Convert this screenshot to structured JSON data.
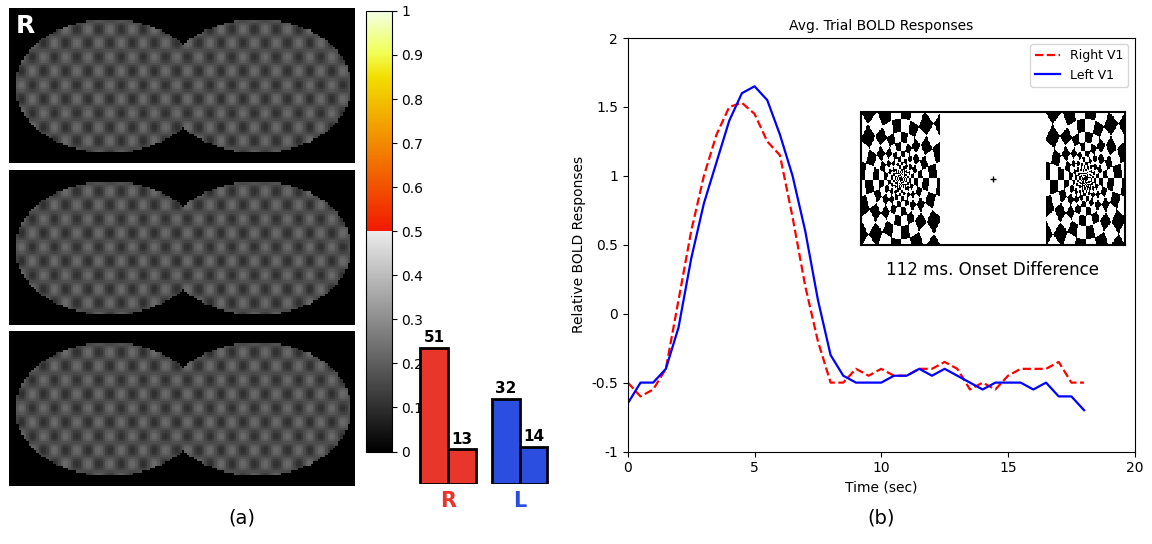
{
  "chart_data": [
    {
      "type": "image",
      "label": "(a)",
      "annotation": "R",
      "colorbar": {
        "range": [
          0,
          1
        ],
        "ticks": [
          0,
          0.1,
          0.2,
          0.3,
          0.4,
          0.5,
          0.6,
          0.7,
          0.8,
          0.9,
          1
        ]
      }
    },
    {
      "type": "bar",
      "tick_labels": false,
      "data_labels": true,
      "series": [
        {
          "name": "R",
          "color": "#e8362a",
          "values": [
            51,
            13
          ]
        },
        {
          "name": "L",
          "color": "#2b4ee0",
          "values": [
            32,
            14
          ]
        }
      ]
    },
    {
      "type": "line",
      "label": "(b)",
      "title": "Avg. Trial BOLD Responses",
      "x_label": "Time (sec)",
      "y_label": "Relative BOLD Responses",
      "annotation": "112 ms. Onset Difference",
      "xlim": [
        0,
        20
      ],
      "xticks": [
        0,
        5,
        10,
        15,
        20
      ],
      "ylim": [
        -1,
        2
      ],
      "yticks": [
        -1,
        -0.5,
        0,
        0.5,
        1,
        1.5,
        2
      ],
      "legend": "upper right",
      "x": [
        0,
        0.5,
        1,
        1.5,
        2,
        2.5,
        3,
        3.5,
        4,
        4.5,
        5,
        5.5,
        6,
        6.5,
        7,
        7.5,
        8,
        8.5,
        9,
        9.5,
        10,
        10.5,
        11,
        11.5,
        12,
        12.5,
        13,
        13.5,
        14,
        14.5,
        15,
        15.5,
        16,
        16.5,
        17,
        17.5,
        18
      ],
      "series": [
        {
          "name": "Right V1",
          "color": "#ff0000",
          "line_style": "dashed",
          "values": [
            -0.5,
            -0.6,
            -0.55,
            -0.4,
            0.1,
            0.6,
            1.0,
            1.3,
            1.5,
            1.53,
            1.45,
            1.25,
            1.15,
            0.7,
            0.2,
            -0.2,
            -0.5,
            -0.5,
            -0.4,
            -0.45,
            -0.4,
            -0.45,
            -0.45,
            -0.4,
            -0.4,
            -0.35,
            -0.4,
            -0.55,
            -0.5,
            -0.55,
            -0.45,
            -0.4,
            -0.4,
            -0.4,
            -0.35,
            -0.5,
            -0.5
          ]
        },
        {
          "name": "Left V1",
          "color": "#0000ff",
          "line_style": "solid",
          "values": [
            -0.65,
            -0.5,
            -0.5,
            -0.4,
            -0.1,
            0.4,
            0.8,
            1.1,
            1.4,
            1.6,
            1.65,
            1.55,
            1.3,
            1.0,
            0.6,
            0.1,
            -0.3,
            -0.45,
            -0.5,
            -0.5,
            -0.5,
            -0.45,
            -0.45,
            -0.4,
            -0.45,
            -0.4,
            -0.45,
            -0.5,
            -0.55,
            -0.5,
            -0.5,
            -0.5,
            -0.55,
            -0.5,
            -0.6,
            -0.6,
            -0.7
          ]
        }
      ]
    }
  ]
}
